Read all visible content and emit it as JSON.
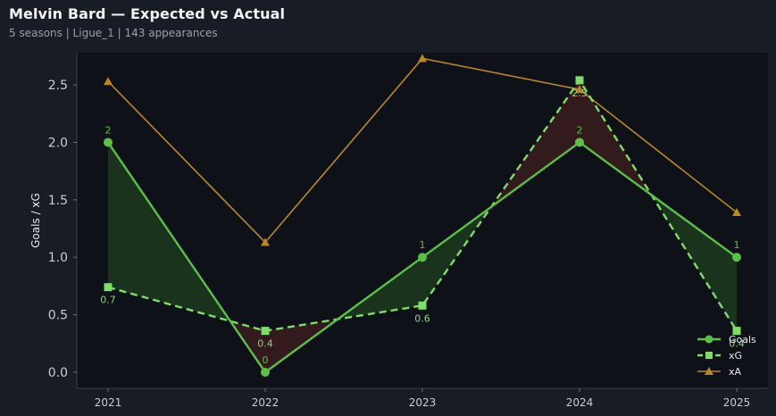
{
  "header": {
    "title": "Melvin Bard — Expected vs Actual",
    "subtitle": "5 seasons | Ligue_1 | 143 appearances"
  },
  "colors": {
    "background": "#181c24",
    "plot_background": "#0e1117",
    "goals": "#5cbf4a",
    "xg": "#7fdc6a",
    "xa": "#b8862a",
    "over_fill": "#1c3a1e",
    "under_fill": "#3a1c1e",
    "text": "#c9ccd2",
    "label_goals": "#5cbf4a",
    "label_xg": "#8ad874",
    "label_xa": "#c0952e"
  },
  "chart_data": {
    "type": "line",
    "title": "",
    "xlabel": "",
    "ylabel": "Goals / xG",
    "x": [
      "2021",
      "2022",
      "2023",
      "2024",
      "2025"
    ],
    "ylim": [
      -0.14,
      2.78
    ],
    "yticks": [
      "0.0",
      "0.5",
      "1.0",
      "1.5",
      "2.0",
      "2.5"
    ],
    "grid": false,
    "legend_position": "bottom-right",
    "series": [
      {
        "name": "Goals",
        "values": [
          2,
          0,
          1,
          2,
          1
        ],
        "labels": [
          "2",
          "0",
          "1",
          "2",
          "1"
        ],
        "marker": "circle",
        "dash": false
      },
      {
        "name": "xG",
        "values": [
          0.74,
          0.36,
          0.58,
          2.54,
          0.36
        ],
        "labels": [
          "0.7",
          "0.4",
          "0.6",
          "2.5",
          "0.4"
        ],
        "marker": "square",
        "dash": true
      },
      {
        "name": "xA",
        "values": [
          2.53,
          1.13,
          2.73,
          2.46,
          1.39
        ],
        "marker": "triangle",
        "dash": false
      }
    ]
  }
}
